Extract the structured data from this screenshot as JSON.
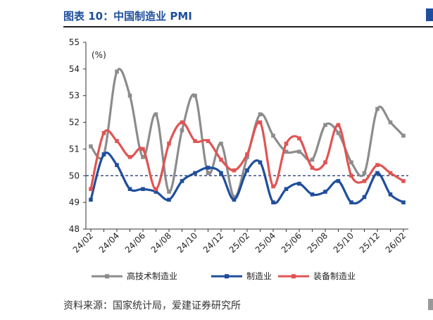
{
  "figure": {
    "title": "图表 10：中国制造业 PMI",
    "source": "资料来源：国家统计局，爱建证券研究所",
    "title_color": "#1f4e9c"
  },
  "chart_data": {
    "type": "line",
    "unit_label": "(%)",
    "ylim": [
      48,
      55
    ],
    "yticks": [
      48,
      49,
      50,
      51,
      52,
      53,
      54,
      55
    ],
    "reference_line": 50,
    "grid": false,
    "legend_position": "bottom",
    "x": [
      "24/02",
      "24/03",
      "24/04",
      "24/05",
      "24/06",
      "24/07",
      "24/08",
      "24/09",
      "24/10",
      "24/11",
      "24/12",
      "25/01",
      "25/02",
      "25/03",
      "25/04",
      "25/05",
      "25/06",
      "25/07",
      "25/08",
      "25/09",
      "25/10",
      "25/11",
      "25/12",
      "26/01",
      "26/02"
    ],
    "x_tick_labels": [
      "24/02",
      "24/04",
      "24/06",
      "24/08",
      "24/10",
      "24/12",
      "25/02",
      "25/04",
      "25/06",
      "25/08",
      "25/10",
      "25/12",
      "26/02"
    ],
    "series": [
      {
        "name": "高技术制造业",
        "color": "#8c8c8c",
        "values": [
          51.1,
          50.8,
          53.9,
          53.0,
          50.7,
          52.3,
          49.4,
          51.7,
          53.0,
          50.1,
          51.2,
          49.2,
          50.7,
          52.3,
          51.5,
          50.9,
          50.9,
          50.6,
          51.9,
          51.6,
          50.5,
          50.1,
          52.5,
          52.0,
          51.5
        ]
      },
      {
        "name": "制造业",
        "color": "#1f4e9c",
        "values": [
          49.1,
          50.8,
          50.4,
          49.5,
          49.5,
          49.4,
          49.1,
          49.8,
          50.1,
          50.3,
          50.1,
          49.1,
          50.2,
          50.5,
          49.0,
          49.5,
          49.7,
          49.3,
          49.4,
          49.8,
          49.0,
          49.2,
          50.1,
          49.3,
          49.0
        ]
      },
      {
        "name": "装备制造业",
        "color": "#e05454",
        "values": [
          49.5,
          51.6,
          51.3,
          50.7,
          51.0,
          49.5,
          51.2,
          52.0,
          51.3,
          51.3,
          50.6,
          50.2,
          50.8,
          52.0,
          49.6,
          51.2,
          51.4,
          50.3,
          50.5,
          51.9,
          50.0,
          49.8,
          50.4,
          50.1,
          49.8
        ]
      }
    ]
  }
}
